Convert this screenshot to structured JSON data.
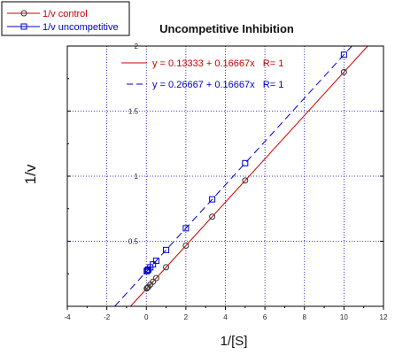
{
  "chart_data": {
    "type": "scatter",
    "title": "Uncompetitive Inhibition",
    "xlabel": "1/[S]",
    "ylabel": "1/v",
    "xlim": [
      -4,
      12
    ],
    "ylim": [
      0,
      2
    ],
    "xticks": [
      -4,
      -2,
      0,
      2,
      4,
      6,
      8,
      10,
      12
    ],
    "yticks": [
      0.5,
      1,
      1.5,
      2
    ],
    "xtick_labels": [
      "-4",
      "-2",
      "0",
      "2",
      "4",
      "6",
      "8",
      "10",
      "12"
    ],
    "ytick_labels": [
      "0.5",
      "1",
      "1.5",
      "2"
    ],
    "grid": "dotted",
    "legend_position": "top-left",
    "series": [
      {
        "name": "1/v control",
        "color": "#cc0000",
        "marker": "circle",
        "x": [
          0.02,
          0.05,
          0.1,
          0.2,
          0.333,
          0.5,
          1,
          2,
          3.333,
          5,
          10
        ],
        "y": [
          0.137,
          0.142,
          0.15,
          0.167,
          0.189,
          0.217,
          0.3,
          0.467,
          0.689,
          0.967,
          1.8
        ],
        "fit": {
          "intercept": 0.13333,
          "slope": 0.16667,
          "line_style": "solid",
          "x_range": [
            -0.8,
            12
          ]
        }
      },
      {
        "name": "1/v uncompetitive",
        "color": "#0000cc",
        "marker": "square",
        "x": [
          0.02,
          0.05,
          0.1,
          0.2,
          0.333,
          0.5,
          1,
          2,
          3.333,
          5,
          10
        ],
        "y": [
          0.27,
          0.275,
          0.283,
          0.3,
          0.322,
          0.35,
          0.433,
          0.6,
          0.822,
          1.1,
          1.933
        ],
        "fit": {
          "intercept": 0.26667,
          "slope": 0.16667,
          "line_style": "dashed",
          "x_range": [
            -1.6,
            12
          ]
        }
      }
    ],
    "equations": [
      {
        "text": "y = 0.13333 + 0.16667x   R= 1",
        "color": "#cc0000",
        "line_style": "solid"
      },
      {
        "text": "y = 0.26667 + 0.16667x   R= 1",
        "color": "#0000cc",
        "line_style": "dashed"
      }
    ]
  }
}
